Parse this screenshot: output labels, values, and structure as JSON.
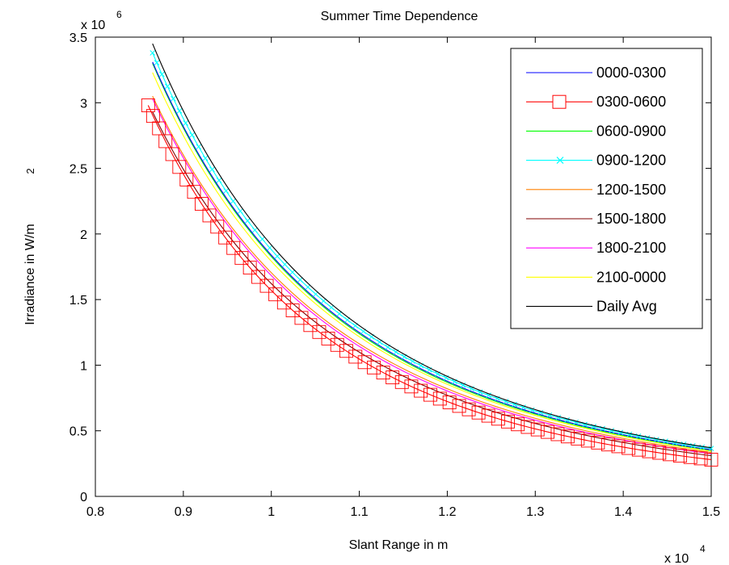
{
  "chart_data": {
    "type": "line",
    "title": "Summer Time Dependence",
    "xlabel": "Slant Range in m",
    "ylabel": "Irradiance in W/m",
    "ylabel_superscript": "2",
    "x_multiplier_label": "x 10",
    "x_multiplier_exponent": "4",
    "y_multiplier_label": "x 10",
    "y_multiplier_exponent": "6",
    "xlim": [
      0.8,
      1.5
    ],
    "ylim": [
      0,
      3.5
    ],
    "x_ticks": [
      0.8,
      0.9,
      1.0,
      1.1,
      1.2,
      1.3,
      1.4,
      1.5
    ],
    "x_tick_labels": [
      "0.8",
      "0.9",
      "1",
      "1.1",
      "1.2",
      "1.3",
      "1.4",
      "1.5"
    ],
    "y_ticks": [
      0,
      0.5,
      1.0,
      1.5,
      2.0,
      2.5,
      3.0,
      3.5
    ],
    "y_tick_labels": [
      "0",
      "0.5",
      "1",
      "1.5",
      "2",
      "2.5",
      "3",
      "3.5"
    ],
    "grid": false,
    "legend_position": "top-right",
    "series": [
      {
        "name": "0000-0300",
        "color": "#0000ff",
        "marker": "none",
        "x_start": 0.865,
        "y_start": 3.31,
        "x_end": 1.5,
        "y_end": 0.355
      },
      {
        "name": "0300-0600",
        "color": "#ff0000",
        "marker": "square",
        "x_start": 0.86,
        "y_start": 2.98,
        "x_end": 1.5,
        "y_end": 0.28
      },
      {
        "name": "0600-0900",
        "color": "#00ff00",
        "marker": "none",
        "x_start": 0.865,
        "y_start": 3.3,
        "x_end": 1.5,
        "y_end": 0.35
      },
      {
        "name": "0900-1200",
        "color": "#00ffff",
        "marker": "x",
        "x_start": 0.865,
        "y_start": 3.38,
        "x_end": 1.5,
        "y_end": 0.365
      },
      {
        "name": "1200-1500",
        "color": "#ff8000",
        "marker": "none",
        "x_start": 0.865,
        "y_start": 3.05,
        "x_end": 1.5,
        "y_end": 0.335
      },
      {
        "name": "1500-1800",
        "color": "#800000",
        "marker": "none",
        "x_start": 0.865,
        "y_start": 2.93,
        "x_end": 1.5,
        "y_end": 0.31
      },
      {
        "name": "1800-2100",
        "color": "#ff00ff",
        "marker": "none",
        "x_start": 0.865,
        "y_start": 3.03,
        "x_end": 1.5,
        "y_end": 0.325
      },
      {
        "name": "2100-0000",
        "color": "#ffff00",
        "marker": "none",
        "x_start": 0.865,
        "y_start": 3.23,
        "x_end": 1.5,
        "y_end": 0.345
      },
      {
        "name": "Daily Avg",
        "color": "#000000",
        "marker": "none",
        "x_start": 0.865,
        "y_start": 3.45,
        "x_end": 1.5,
        "y_end": 0.37
      }
    ]
  }
}
